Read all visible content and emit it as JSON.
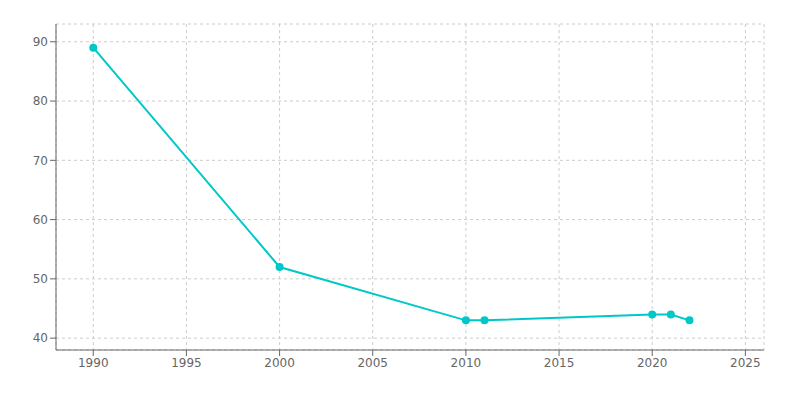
{
  "chart_data": {
    "type": "line",
    "x": [
      1990,
      2000,
      2010,
      2011,
      2020,
      2021,
      2022
    ],
    "values": [
      89,
      52,
      43,
      43,
      44,
      44,
      43
    ],
    "color": "#00c8c8",
    "marker": "circle",
    "xlim": [
      1988,
      2026
    ],
    "ylim": [
      38,
      93
    ],
    "xticks": [
      1990,
      1995,
      2000,
      2005,
      2010,
      2015,
      2020,
      2025
    ],
    "yticks": [
      40,
      50,
      60,
      70,
      80,
      90
    ],
    "grid": true
  }
}
